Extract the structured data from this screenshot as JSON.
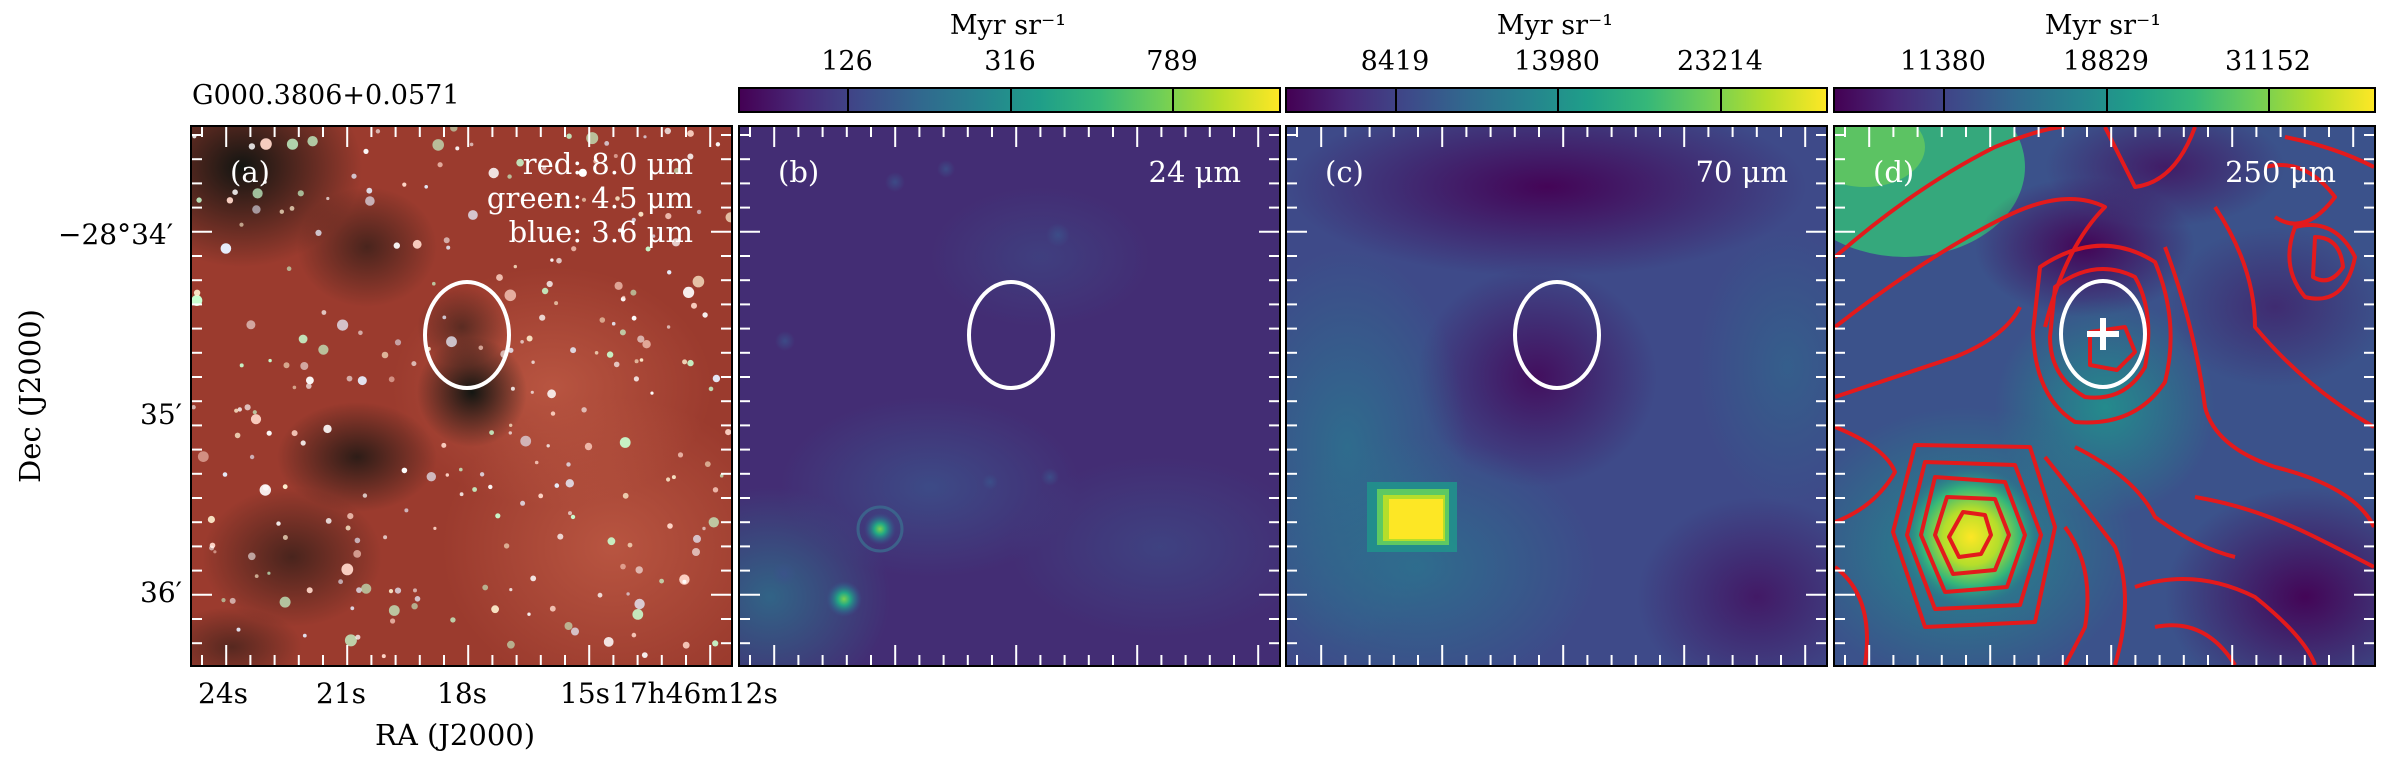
{
  "figure": {
    "source_name": "G000.3806+0.0571",
    "xlabel": "RA (J2000)",
    "ylabel": "Dec (J2000)",
    "x_ticks": [
      "24s",
      "21s",
      "18s",
      "15s",
      "17h46m12s"
    ],
    "y_ticks": [
      "−28°34′",
      "35′",
      "36′"
    ]
  },
  "panels": [
    {
      "label": "(a)",
      "bands": [
        "red: 8.0 μm",
        "green: 4.5 μm",
        "blue: 3.6 μm"
      ]
    },
    {
      "label": "(b)",
      "wavelength": "24 μm",
      "colorbar": {
        "unit": "Myr sr⁻¹",
        "ticks": [
          "126",
          "316",
          "789"
        ]
      }
    },
    {
      "label": "(c)",
      "wavelength": "70 μm",
      "colorbar": {
        "unit": "Myr sr⁻¹",
        "ticks": [
          "8419",
          "13980",
          "23214"
        ]
      }
    },
    {
      "label": "(d)",
      "wavelength": "250 μm",
      "colorbar": {
        "unit": "Myr sr⁻¹",
        "ticks": [
          "11380",
          "18829",
          "31152"
        ]
      }
    }
  ],
  "colors": {
    "viridis_low": "#440154",
    "viridis_mid": "#21918c",
    "viridis_high": "#fde725",
    "contour": "#e31a1c",
    "ellipse": "#ffffff"
  }
}
